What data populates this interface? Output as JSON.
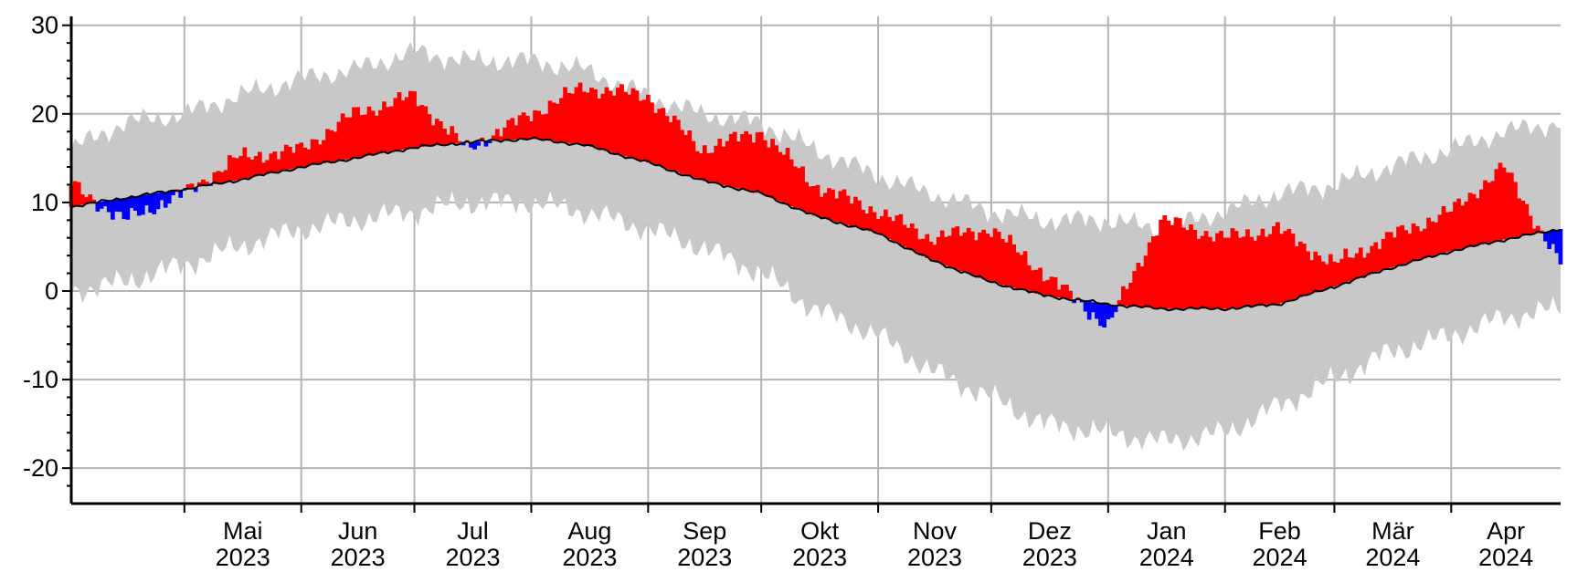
{
  "chart_data": {
    "type": "area",
    "y_axis": {
      "range": [
        -24,
        31
      ],
      "ticks": [
        30,
        20,
        10,
        0,
        -10,
        -20
      ],
      "tick_labels": [
        "30",
        "20",
        "10",
        "0",
        "-10",
        "-20"
      ]
    },
    "x_axis": {
      "range": [
        "2023-04-01",
        "2024-04-30"
      ],
      "months": [
        {
          "label": "Mai",
          "year": "2023"
        },
        {
          "label": "Jun",
          "year": "2023"
        },
        {
          "label": "Jul",
          "year": "2023"
        },
        {
          "label": "Aug",
          "year": "2023"
        },
        {
          "label": "Sep",
          "year": "2023"
        },
        {
          "label": "Okt",
          "year": "2023"
        },
        {
          "label": "Nov",
          "year": "2023"
        },
        {
          "label": "Dez",
          "year": "2023"
        },
        {
          "label": "Jan",
          "year": "2024"
        },
        {
          "label": "Feb",
          "year": "2024"
        },
        {
          "label": "Mär",
          "year": "2024"
        },
        {
          "label": "Apr",
          "year": "2024"
        }
      ]
    },
    "grid": true,
    "colors": {
      "range_band": "#c8c8c8",
      "above_normal": "#ff0000",
      "below_normal": "#0000ff",
      "normal_line": "#000000",
      "grid": "#b4b4b4"
    },
    "series": [
      {
        "x": [
          "2023-04-01",
          "2023-04-15",
          "2023-05-01",
          "2023-05-15",
          "2023-06-01",
          "2023-06-15",
          "2023-07-01",
          "2023-07-15",
          "2023-08-01",
          "2023-08-15",
          "2023-09-01",
          "2023-09-15",
          "2023-10-01",
          "2023-10-15",
          "2023-11-01",
          "2023-11-15",
          "2023-12-01",
          "2023-12-15",
          "2024-01-01",
          "2024-01-15",
          "2024-02-01",
          "2024-02-15",
          "2024-03-01",
          "2024-03-15",
          "2024-04-01",
          "2024-04-15",
          "2024-04-30"
        ],
        "normal": [
          9.5,
          10.5,
          11.5,
          12.5,
          14.0,
          15.0,
          16.2,
          16.8,
          17.2,
          16.5,
          14.5,
          12.5,
          11.0,
          8.5,
          6.5,
          3.5,
          1.0,
          -0.5,
          -1.5,
          -2.0,
          -2.0,
          -1.5,
          0.5,
          2.5,
          4.5,
          5.8,
          7.0
        ],
        "actual": [
          12,
          8,
          11,
          15,
          16,
          20,
          22,
          16,
          20,
          23,
          22,
          16,
          18,
          12,
          9,
          6,
          7,
          2,
          -4,
          8,
          6,
          7,
          3,
          6,
          9,
          14,
          3
        ],
        "band_max": [
          16,
          19,
          20,
          22,
          24,
          25,
          27,
          26,
          26,
          25,
          22,
          20,
          19,
          16,
          13,
          11,
          9,
          8,
          8,
          7,
          9,
          11,
          12,
          14,
          16,
          18,
          19
        ],
        "band_min": [
          0,
          1,
          3,
          5,
          7,
          8,
          9,
          10,
          10,
          9,
          7,
          5,
          2,
          -2,
          -5,
          -9,
          -12,
          -15,
          -16,
          -17,
          -16,
          -13,
          -10,
          -7,
          -5,
          -3,
          -2
        ]
      }
    ]
  }
}
